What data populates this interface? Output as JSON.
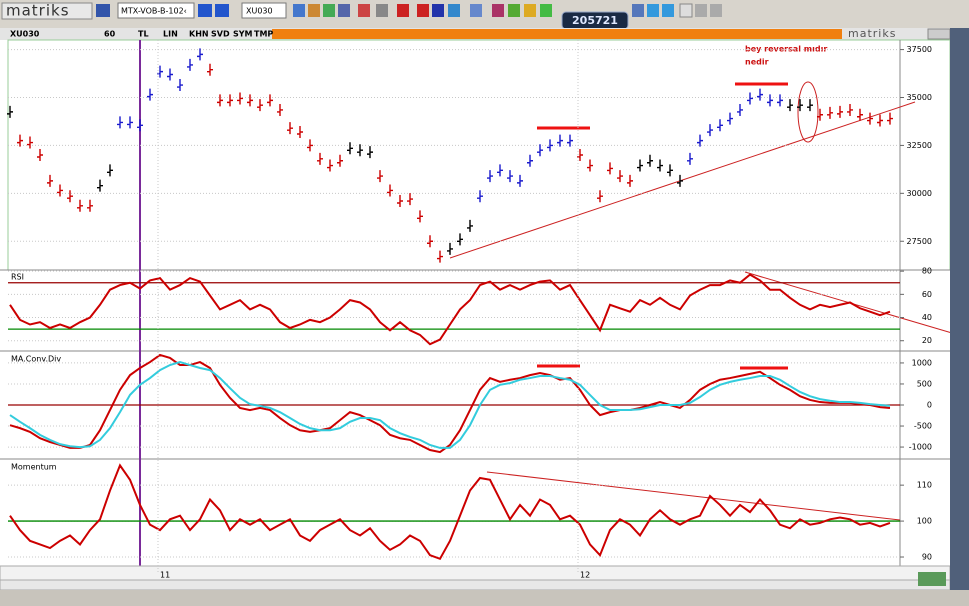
{
  "toolbar": {
    "logo": "matriks",
    "symbol_box": "MTX-VOB-B-102‹",
    "symbol2": "XU030",
    "clock": "205721"
  },
  "tabs": [
    "XU030",
    "60",
    "TL",
    "LIN",
    "KHN",
    "SVD",
    "SYM",
    "TMP"
  ],
  "brand": "matriks",
  "annotations": [
    "bey reversal mıdır",
    "nedir"
  ],
  "chart_data": [
    {
      "type": "bar",
      "series": [
        {
          "values": [
            34250,
            32750,
            32650,
            32000,
            30650,
            30150,
            29850,
            29350,
            29350,
            30400,
            31200,
            33700,
            33700,
            33550,
            35150,
            36350,
            36200,
            35650,
            36700,
            37250,
            36450,
            34850,
            34850,
            34950,
            34850,
            34600,
            34850,
            34350,
            33400,
            33200,
            32500,
            31800,
            31450,
            31700,
            32350,
            32250,
            32150,
            30900,
            30150,
            29600,
            29700,
            28800,
            27500,
            26700,
            27100,
            27600,
            28300,
            29850,
            30900,
            31200,
            30900,
            30650,
            31700,
            32250,
            32500,
            32750,
            32750,
            32000,
            31450,
            29850,
            31300,
            30900,
            30650,
            31450,
            31700,
            31450,
            31200,
            30650,
            31800,
            32750,
            33300,
            33550,
            33900,
            34350,
            34950,
            35150,
            34850,
            34850,
            34600,
            34600,
            34600,
            34100,
            34200,
            34250,
            34350,
            34100,
            33900,
            33800,
            33900
          ],
          "colors": [
            "#000000",
            "#cc0000",
            "#cc0000",
            "#cc0000",
            "#cc0000",
            "#cc0000",
            "#cc0000",
            "#cc0000",
            "#cc0000",
            "#000000",
            "#000000",
            "#1a1acc",
            "#1a1acc",
            "#1a1acc",
            "#1a1acc",
            "#1a1acc",
            "#1a1acc",
            "#1a1acc",
            "#1a1acc",
            "#1a1acc",
            "#cc0000",
            "#cc0000",
            "#cc0000",
            "#cc0000",
            "#cc0000",
            "#cc0000",
            "#cc0000",
            "#cc0000",
            "#cc0000",
            "#cc0000",
            "#cc0000",
            "#cc0000",
            "#cc0000",
            "#cc0000",
            "#000000",
            "#000000",
            "#000000",
            "#cc0000",
            "#cc0000",
            "#cc0000",
            "#cc0000",
            "#cc0000",
            "#cc0000",
            "#cc0000",
            "#000000",
            "#000000",
            "#000000",
            "#1a1acc",
            "#1a1acc",
            "#1a1acc",
            "#1a1acc",
            "#1a1acc",
            "#1a1acc",
            "#1a1acc",
            "#1a1acc",
            "#1a1acc",
            "#1a1acc",
            "#cc0000",
            "#cc0000",
            "#cc0000",
            "#cc0000",
            "#cc0000",
            "#cc0000",
            "#000000",
            "#000000",
            "#000000",
            "#000000",
            "#000000",
            "#1a1acc",
            "#1a1acc",
            "#1a1acc",
            "#1a1acc",
            "#1a1acc",
            "#1a1acc",
            "#1a1acc",
            "#1a1acc",
            "#1a1acc",
            "#1a1acc",
            "#000000",
            "#000000",
            "#000000",
            "#cc0000",
            "#cc0000",
            "#cc0000",
            "#cc0000",
            "#cc0000",
            "#cc0000",
            "#cc0000",
            "#cc0000"
          ]
        }
      ],
      "ylim": [
        26000,
        38000
      ],
      "yticks": [
        27500,
        30000,
        32500,
        35000,
        37500
      ],
      "grid": true
    },
    {
      "type": "line",
      "title": "RSI",
      "series": [
        {
          "color": "#cc0000",
          "values": [
            51,
            38,
            34,
            36,
            31,
            34,
            31,
            36,
            40,
            51,
            64,
            68,
            70,
            65,
            72,
            74,
            64,
            68,
            74,
            71,
            59,
            47,
            51,
            55,
            47,
            51,
            47,
            36,
            31,
            34,
            38,
            36,
            40,
            47,
            55,
            53,
            47,
            36,
            29,
            36,
            29,
            25,
            17,
            21,
            34,
            47,
            55,
            68,
            71,
            64,
            68,
            64,
            68,
            71,
            72,
            64,
            68,
            55,
            42,
            29,
            51,
            48,
            45,
            55,
            51,
            57,
            51,
            47,
            59,
            64,
            68,
            68,
            72,
            70,
            77,
            72,
            64,
            64,
            57,
            51,
            47,
            51,
            49,
            51,
            53,
            48,
            45,
            42,
            45
          ]
        }
      ],
      "ylim": [
        12,
        81
      ],
      "yticks": [
        20,
        40,
        60,
        80
      ],
      "levels": [
        {
          "value": 70,
          "color": "#990000"
        },
        {
          "value": 30,
          "color": "#008800"
        }
      ],
      "grid": true
    },
    {
      "type": "line",
      "title": "MA.Conv.Div",
      "series": [
        {
          "color": "#cc0000",
          "values": [
            -480,
            -550,
            -640,
            -790,
            -880,
            -950,
            -1020,
            -1020,
            -950,
            -600,
            -120,
            360,
            710,
            880,
            1020,
            1190,
            1120,
            950,
            950,
            1020,
            880,
            480,
            170,
            -70,
            -120,
            -70,
            -120,
            -310,
            -480,
            -600,
            -640,
            -600,
            -550,
            -360,
            -170,
            -240,
            -360,
            -480,
            -710,
            -790,
            -830,
            -950,
            -1070,
            -1120,
            -950,
            -600,
            -120,
            360,
            640,
            550,
            600,
            640,
            710,
            760,
            710,
            600,
            640,
            360,
            0,
            -240,
            -170,
            -120,
            -120,
            -70,
            0,
            70,
            0,
            -70,
            120,
            360,
            500,
            600,
            640,
            690,
            740,
            790,
            640,
            480,
            360,
            210,
            120,
            70,
            50,
            50,
            50,
            20,
            0,
            -50,
            -70
          ]
        },
        {
          "color": "#33ccdd",
          "values": [
            -240,
            -400,
            -550,
            -710,
            -830,
            -930,
            -980,
            -1000,
            -980,
            -830,
            -550,
            -170,
            240,
            480,
            640,
            830,
            950,
            1020,
            950,
            880,
            830,
            640,
            400,
            170,
            20,
            -20,
            -70,
            -170,
            -310,
            -450,
            -550,
            -600,
            -600,
            -550,
            -400,
            -310,
            -310,
            -360,
            -550,
            -670,
            -760,
            -830,
            -950,
            -1020,
            -1020,
            -830,
            -480,
            0,
            360,
            480,
            520,
            600,
            640,
            690,
            690,
            640,
            600,
            480,
            240,
            0,
            -120,
            -120,
            -120,
            -100,
            -50,
            0,
            0,
            0,
            50,
            190,
            360,
            480,
            550,
            600,
            640,
            690,
            690,
            600,
            450,
            310,
            210,
            140,
            100,
            70,
            70,
            50,
            20,
            0,
            -20
          ]
        }
      ],
      "ylim": [
        -1260,
        1260
      ],
      "yticks": [
        -1000,
        -500,
        0,
        500,
        1000
      ],
      "levels": [
        {
          "value": 0,
          "color": "#990000"
        }
      ],
      "grid": true
    },
    {
      "type": "line",
      "title": "Momentum",
      "series": [
        {
          "color": "#cc0000",
          "values": [
            101.5,
            97.5,
            94.5,
            93.5,
            92.5,
            94.5,
            96,
            93.5,
            97.5,
            100.5,
            108.5,
            115.5,
            111.5,
            104.5,
            99,
            97.5,
            100.5,
            101.5,
            97.5,
            100.5,
            106,
            103,
            97.5,
            100.5,
            99,
            100.5,
            97.5,
            99,
            100.5,
            96,
            94.5,
            97.5,
            99,
            100.5,
            97.5,
            96,
            98,
            94.5,
            92,
            93.5,
            96,
            94.5,
            90.5,
            89.5,
            94.5,
            101.5,
            108.5,
            112,
            111.5,
            106,
            100.5,
            104.5,
            101.5,
            106,
            104.5,
            100.5,
            101.5,
            99,
            93.5,
            90.5,
            97.5,
            100.5,
            99,
            96,
            100.5,
            103,
            100.5,
            99,
            100.5,
            101.5,
            107,
            104.5,
            101.5,
            104.5,
            102.5,
            106,
            103,
            99,
            98,
            100.5,
            99,
            99.5,
            100.5,
            101,
            100.5,
            99,
            99.5,
            98.5,
            99.5
          ]
        }
      ],
      "ylim": [
        87.5,
        117
      ],
      "yticks": [
        90,
        100,
        110
      ],
      "levels": [
        {
          "value": 100,
          "color": "#008800"
        }
      ],
      "grid": true,
      "xlim": [
        -0.2,
        89
      ],
      "xticks": [
        {
          "value": 14.8,
          "label": "11"
        },
        {
          "value": 56.8,
          "label": "12"
        }
      ]
    }
  ]
}
